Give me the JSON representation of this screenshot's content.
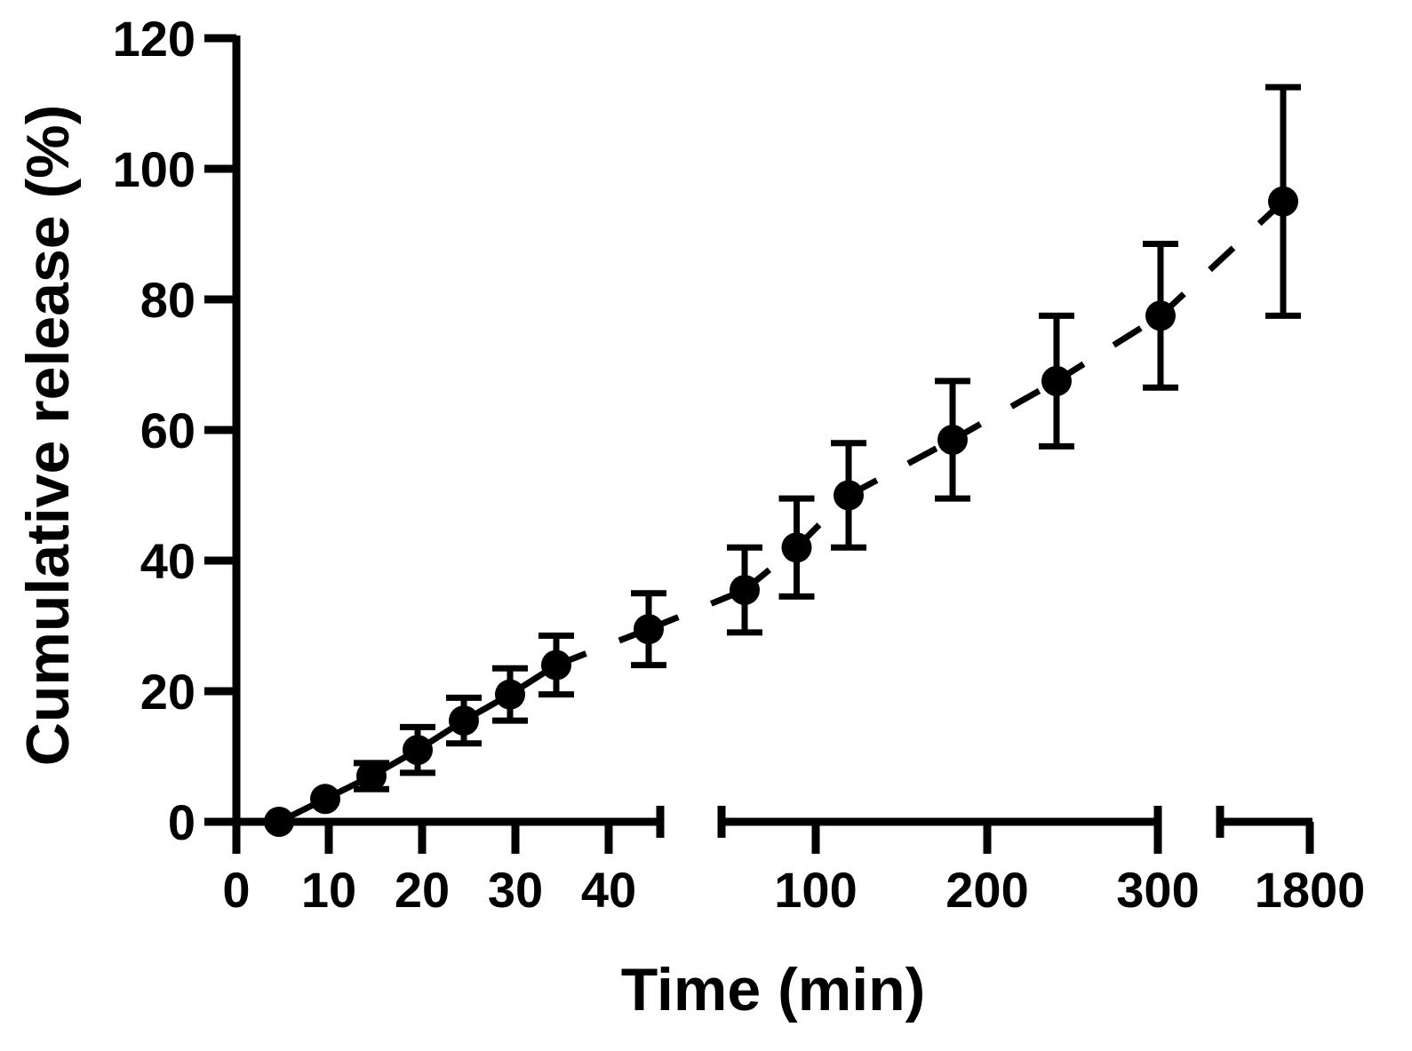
{
  "chart_data": {
    "type": "scatter",
    "xlabel": "Time (min)",
    "ylabel": "Cumulative release (%)",
    "ylim": [
      0,
      120
    ],
    "yticks": [
      0,
      20,
      40,
      60,
      80,
      100,
      120
    ],
    "x_axis_segments": [
      {
        "ticks": [
          "0",
          "10",
          "20",
          "30",
          "40"
        ]
      },
      {
        "ticks": [
          "100",
          "200",
          "300"
        ]
      },
      {
        "ticks": [
          "1800"
        ]
      }
    ],
    "grid": false,
    "legend": "none",
    "color": "#000000",
    "points": [
      {
        "x": 5,
        "y": 0,
        "err": 0
      },
      {
        "x": 10,
        "y": 3.5,
        "err": 0
      },
      {
        "x": 15,
        "y": 7,
        "err": 2
      },
      {
        "x": 20,
        "y": 11,
        "err": 3.5
      },
      {
        "x": 25,
        "y": 15.5,
        "err": 3.5
      },
      {
        "x": 30,
        "y": 19.5,
        "err": 4
      },
      {
        "x": 35,
        "y": 24,
        "err": 4.5
      },
      {
        "x": 45,
        "y": 29.5,
        "err": 5.5
      },
      {
        "x": 60,
        "y": 35.5,
        "err": 6.5
      },
      {
        "x": 90,
        "y": 42,
        "err": 7.5
      },
      {
        "x": 120,
        "y": 50,
        "err": 8
      },
      {
        "x": 180,
        "y": 58.5,
        "err": 9
      },
      {
        "x": 240,
        "y": 67.5,
        "err": 10
      },
      {
        "x": 300,
        "y": 77.5,
        "err": 11
      },
      {
        "x": 1800,
        "y": 95,
        "err": 17.5
      }
    ]
  }
}
